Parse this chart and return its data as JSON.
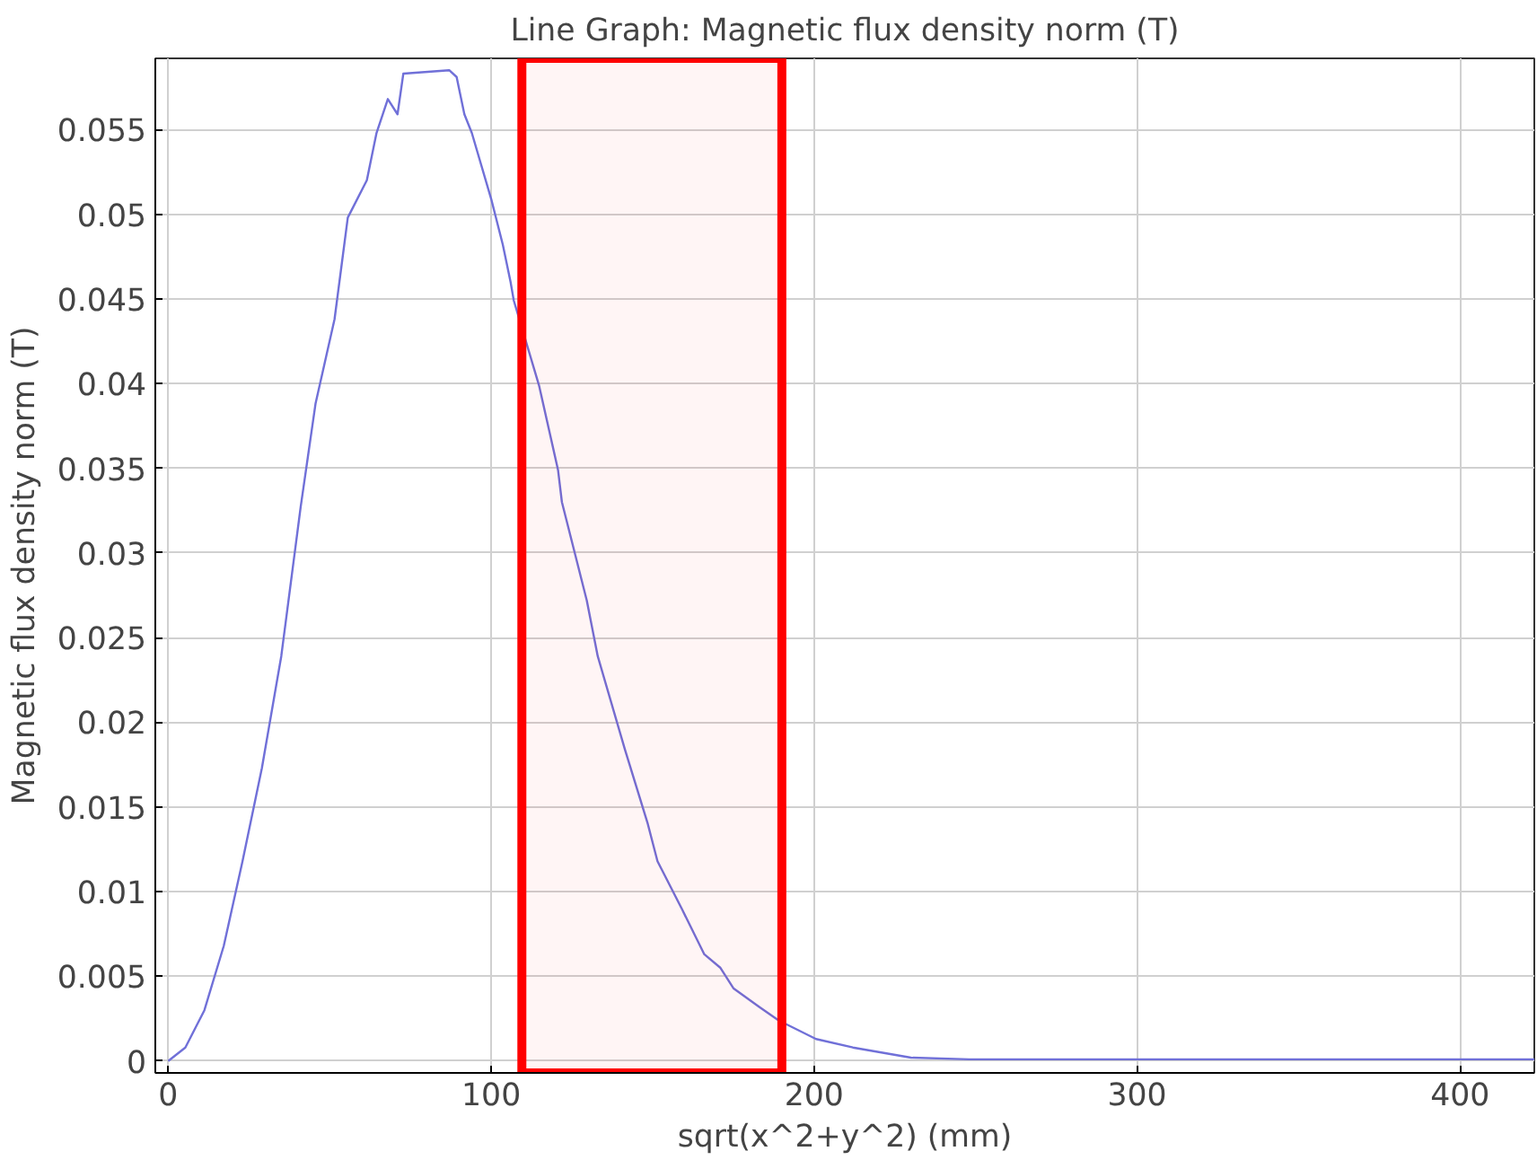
{
  "chart_data": {
    "type": "line",
    "title": "Line Graph: Magnetic flux density norm (T)",
    "xlabel": "sqrt(x^2+y^2) (mm)",
    "ylabel": "Magnetic flux density norm (T)",
    "series": [
      {
        "color": "#7070d8",
        "x": [
          0,
          5.3,
          11.2,
          17.2,
          23,
          29,
          35,
          41,
          45.6,
          51.5,
          55.6,
          61.5,
          64.5,
          68,
          71,
          72.8,
          87,
          89.3,
          91.7,
          94,
          100,
          103.6,
          106,
          107,
          114.8,
          120.7,
          121.9,
          129.6,
          133,
          141.4,
          148.5,
          151.5,
          159,
          166,
          171,
          175,
          183,
          189,
          200.6,
          212,
          230,
          248,
          300,
          350,
          400,
          423
        ],
        "values": [
          0,
          0.0008,
          0.003,
          0.0068,
          0.0118,
          0.0173,
          0.0239,
          0.0327,
          0.0388,
          0.0438,
          0.0498,
          0.052,
          0.0548,
          0.0568,
          0.0559,
          0.0583,
          0.0585,
          0.0581,
          0.0559,
          0.0548,
          0.0509,
          0.0482,
          0.046,
          0.0449,
          0.0399,
          0.0349,
          0.033,
          0.0272,
          0.0239,
          0.0184,
          0.014,
          0.0118,
          0.009,
          0.0063,
          0.0055,
          0.0043,
          0.0032,
          0.0024,
          0.0013,
          0.0008,
          0.0002,
          0.0001,
          0.0001,
          0.0001,
          0.0001,
          0.0001
        ]
      }
    ],
    "xlim": [
      -4,
      423
    ],
    "ylim": [
      -0.0007,
      0.0592
    ],
    "xticks": [
      0,
      100,
      200,
      300,
      400
    ],
    "yticks": [
      0,
      0.005,
      0.01,
      0.015,
      0.02,
      0.025,
      0.03,
      0.035,
      0.04,
      0.045,
      0.05,
      0.055
    ],
    "bands": [
      {
        "axis": "x",
        "from": 109.5,
        "to": 190,
        "color": "#ff0000"
      }
    ],
    "grid": true,
    "line_style": "solid",
    "marker": "none"
  }
}
